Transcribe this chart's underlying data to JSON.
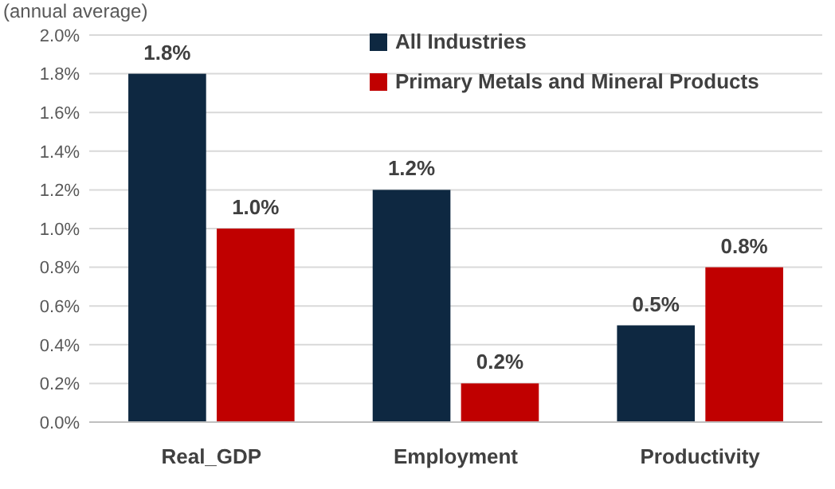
{
  "chart_data": {
    "type": "bar",
    "ylabel": "(annual average)",
    "categories": [
      "Real_GDP",
      "Employment",
      "Productivity"
    ],
    "series": [
      {
        "name": "All Industries",
        "color": "#0e2841",
        "values": [
          1.8,
          1.2,
          0.5
        ],
        "value_labels": [
          "1.8%",
          "1.2%",
          "0.5%"
        ]
      },
      {
        "name": "Primary Metals and Mineral Products",
        "color": "#c00000",
        "values": [
          1.0,
          0.2,
          0.8
        ],
        "value_labels": [
          "1.0%",
          "0.2%",
          "0.8%"
        ]
      }
    ],
    "ylim": [
      0,
      2.0
    ],
    "yticks": [
      {
        "value": 0,
        "label": "0.0%"
      },
      {
        "value": 0.2,
        "label": "0.2%"
      },
      {
        "value": 0.4,
        "label": "0.4%"
      },
      {
        "value": 0.6,
        "label": "0.6%"
      },
      {
        "value": 0.8,
        "label": "0.8%"
      },
      {
        "value": 1.0,
        "label": "1.0%"
      },
      {
        "value": 1.2,
        "label": "1.2%"
      },
      {
        "value": 1.4,
        "label": "1.4%"
      },
      {
        "value": 1.6,
        "label": "1.6%"
      },
      {
        "value": 1.8,
        "label": "1.8%"
      },
      {
        "value": 2.0,
        "label": "2.0%"
      }
    ],
    "grid": "y",
    "legend": "top right"
  }
}
